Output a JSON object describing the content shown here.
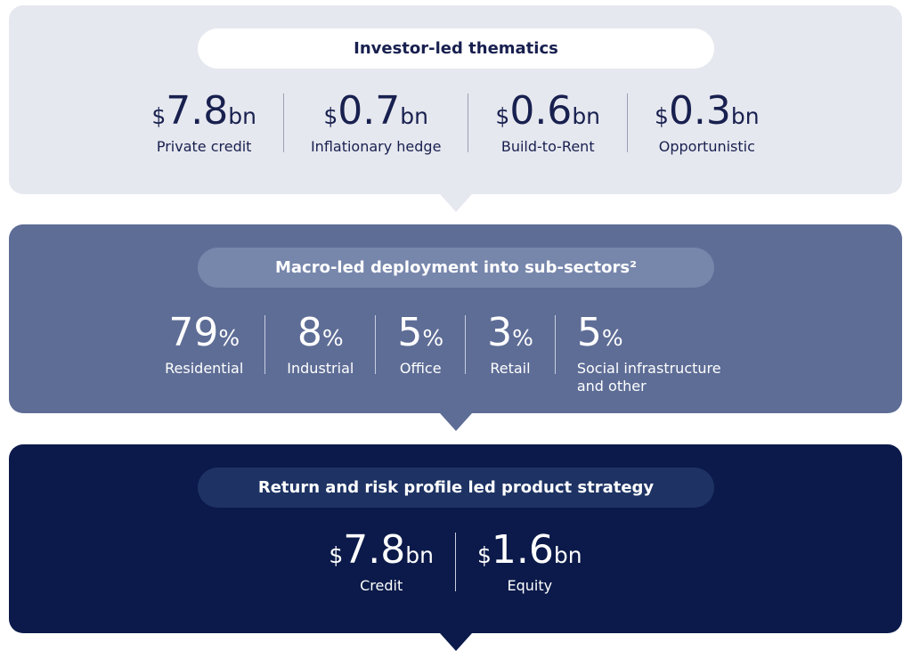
{
  "panels": [
    {
      "title": "Investor-led thematics",
      "stats": [
        {
          "prefix": "$",
          "value": 7.8,
          "unit": "bn",
          "label": "Private credit"
        },
        {
          "prefix": "$",
          "value": 0.7,
          "unit": "bn",
          "label": "Inflationary hedge"
        },
        {
          "prefix": "$",
          "value": 0.6,
          "unit": "bn",
          "label": "Build-to-Rent"
        },
        {
          "prefix": "$",
          "value": 0.3,
          "unit": "bn",
          "label": "Opportunistic"
        }
      ]
    },
    {
      "title": "Macro-led deployment into sub-sectors²",
      "stats": [
        {
          "value": 79,
          "unit": "%",
          "label": "Residential"
        },
        {
          "value": 8,
          "unit": "%",
          "label": "Industrial"
        },
        {
          "value": 5,
          "unit": "%",
          "label": "Office"
        },
        {
          "value": 3,
          "unit": "%",
          "label": "Retail"
        },
        {
          "value": 5,
          "unit": "%",
          "label": "Social infrastructure and other"
        }
      ]
    },
    {
      "title": "Return and risk profile led product strategy",
      "stats": [
        {
          "prefix": "$",
          "value": 7.8,
          "unit": "bn",
          "label": "Credit"
        },
        {
          "prefix": "$",
          "value": 1.6,
          "unit": "bn",
          "label": "Equity"
        }
      ]
    }
  ]
}
